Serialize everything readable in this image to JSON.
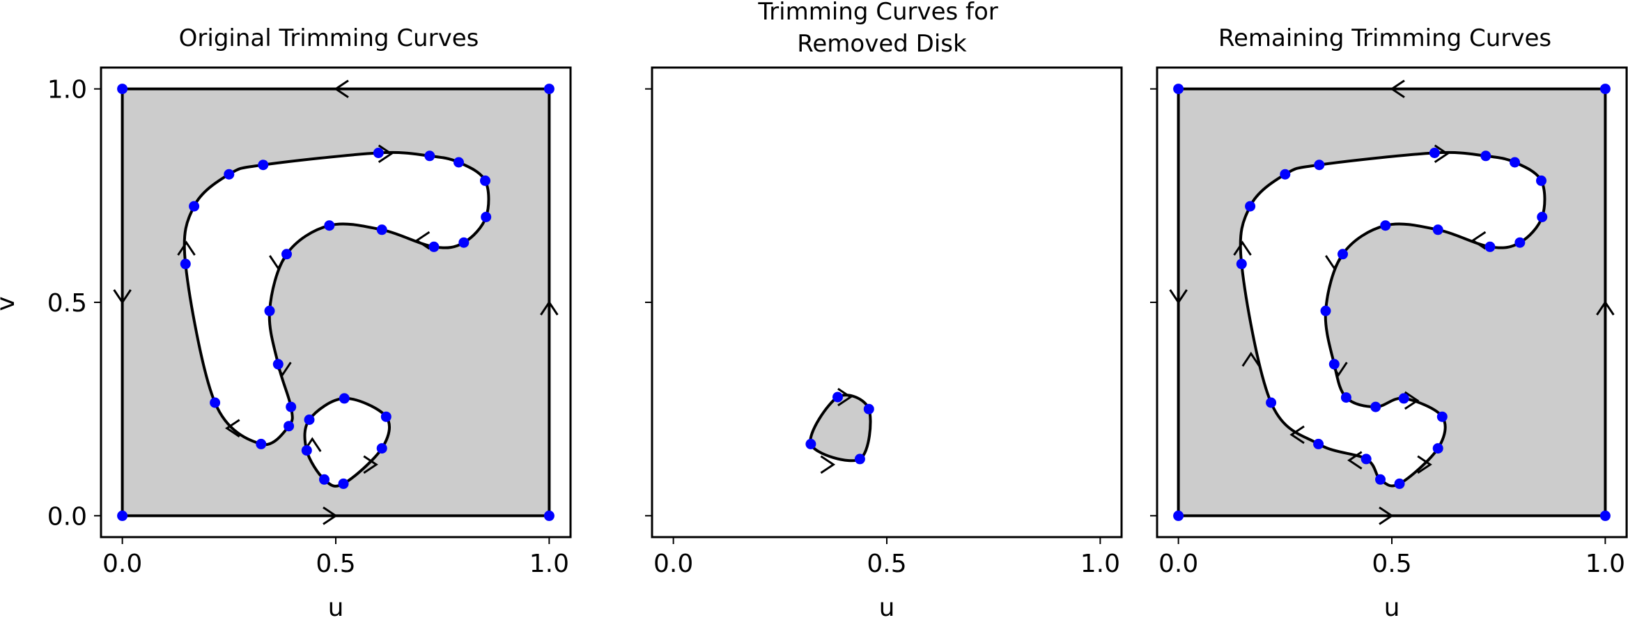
{
  "figure": {
    "background": "#ffffff",
    "fill_color": "#cccccc",
    "curve_color": "#000000",
    "point_color": "#0000ff"
  },
  "chart_data": [
    {
      "type": "line",
      "title": "Original Trimming Curves",
      "xlabel": "u",
      "ylabel": "v",
      "xlim": [
        -0.05,
        1.05
      ],
      "ylim": [
        -0.05,
        1.05
      ],
      "xticks": [
        {
          "value": 0.0,
          "label": "0.0"
        },
        {
          "value": 0.5,
          "label": "0.5"
        },
        {
          "value": 1.0,
          "label": "1.0"
        }
      ],
      "yticks": [
        {
          "value": 0.0,
          "label": "0.0"
        },
        {
          "value": 0.5,
          "label": "0.5"
        },
        {
          "value": 1.0,
          "label": "1.0"
        }
      ],
      "show_ytick_labels": true,
      "fill_region": true,
      "outer_boundary": [
        [
          0,
          0
        ],
        [
          1,
          0
        ],
        [
          1,
          1
        ],
        [
          0,
          1
        ],
        [
          0,
          0
        ]
      ],
      "outer_points": [
        [
          0,
          0
        ],
        [
          1,
          0
        ],
        [
          1,
          1
        ],
        [
          0,
          1
        ]
      ],
      "arrows": [
        {
          "at": [
            0.5,
            0.0
          ],
          "dir": "right"
        },
        {
          "at": [
            1.0,
            0.5
          ],
          "dir": "up"
        },
        {
          "at": [
            0.5,
            1.0
          ],
          "dir": "left"
        },
        {
          "at": [
            0.0,
            0.5
          ],
          "dir": "down"
        },
        {
          "at": [
            0.63,
            0.848
          ],
          "dir": "right"
        },
        {
          "at": [
            0.15,
            0.64
          ],
          "dir": "up"
        },
        {
          "at": [
            0.245,
            0.205
          ],
          "dir": "left"
        },
        {
          "at": [
            0.375,
            0.33
          ],
          "dir": "down"
        },
        {
          "at": [
            0.365,
            0.58
          ],
          "dir": "down"
        },
        {
          "at": [
            0.69,
            0.645
          ],
          "dir": "left"
        },
        {
          "at": [
            0.445,
            0.18
          ],
          "dir": "up"
        },
        {
          "at": [
            0.595,
            0.12
          ],
          "dir": "right"
        }
      ],
      "holes": [
        {
          "points": [
            [
              0.6,
              0.85
            ],
            [
              0.72,
              0.843
            ],
            [
              0.788,
              0.828
            ],
            [
              0.85,
              0.785
            ],
            [
              0.852,
              0.7
            ],
            [
              0.8,
              0.64
            ],
            [
              0.73,
              0.63
            ],
            [
              0.608,
              0.67
            ],
            [
              0.485,
              0.68
            ],
            [
              0.385,
              0.613
            ],
            [
              0.345,
              0.48
            ],
            [
              0.365,
              0.355
            ],
            [
              0.395,
              0.255
            ],
            [
              0.39,
              0.21
            ],
            [
              0.325,
              0.168
            ],
            [
              0.217,
              0.265
            ],
            [
              0.148,
              0.59
            ],
            [
              0.168,
              0.725
            ],
            [
              0.25,
              0.8
            ],
            [
              0.33,
              0.822
            ]
          ],
          "closed": true
        },
        {
          "points": [
            [
              0.52,
              0.275
            ],
            [
              0.618,
              0.232
            ],
            [
              0.608,
              0.158
            ],
            [
              0.518,
              0.075
            ],
            [
              0.473,
              0.085
            ],
            [
              0.432,
              0.153
            ],
            [
              0.438,
              0.225
            ]
          ],
          "closed": true
        }
      ]
    },
    {
      "type": "line",
      "title": "Trimming Curves for\nRemoved Disk",
      "xlabel": "u",
      "ylabel": "",
      "xlim": [
        -0.05,
        1.05
      ],
      "ylim": [
        -0.05,
        1.05
      ],
      "xticks": [
        {
          "value": 0.0,
          "label": "0.0"
        },
        {
          "value": 0.5,
          "label": "0.5"
        },
        {
          "value": 1.0,
          "label": "1.0"
        }
      ],
      "yticks": [
        {
          "value": 0.0,
          "label": ""
        },
        {
          "value": 0.5,
          "label": ""
        },
        {
          "value": 1.0,
          "label": ""
        }
      ],
      "show_ytick_labels": false,
      "fill_region": false,
      "arrows": [
        {
          "at": [
            0.415,
            0.278
          ],
          "dir": "right"
        },
        {
          "at": [
            0.375,
            0.12
          ],
          "dir": "right"
        }
      ],
      "shapes": [
        {
          "points": [
            [
              0.385,
              0.278
            ],
            [
              0.458,
              0.25
            ],
            [
              0.437,
              0.133
            ],
            [
              0.322,
              0.168
            ]
          ],
          "closed": true,
          "filled": true
        }
      ]
    },
    {
      "type": "line",
      "title": "Remaining Trimming Curves",
      "xlabel": "u",
      "ylabel": "",
      "xlim": [
        -0.05,
        1.05
      ],
      "ylim": [
        -0.05,
        1.05
      ],
      "xticks": [
        {
          "value": 0.0,
          "label": "0.0"
        },
        {
          "value": 0.5,
          "label": "0.5"
        },
        {
          "value": 1.0,
          "label": "1.0"
        }
      ],
      "yticks": [
        {
          "value": 0.0,
          "label": ""
        },
        {
          "value": 0.5,
          "label": ""
        },
        {
          "value": 1.0,
          "label": ""
        }
      ],
      "show_ytick_labels": false,
      "fill_region": true,
      "outer_boundary": [
        [
          0,
          0
        ],
        [
          1,
          0
        ],
        [
          1,
          1
        ],
        [
          0,
          1
        ],
        [
          0,
          0
        ]
      ],
      "outer_points": [
        [
          0,
          0
        ],
        [
          1,
          0
        ],
        [
          1,
          1
        ],
        [
          0,
          1
        ]
      ],
      "arrows": [
        {
          "at": [
            0.5,
            0.0
          ],
          "dir": "right"
        },
        {
          "at": [
            1.0,
            0.5
          ],
          "dir": "up"
        },
        {
          "at": [
            0.5,
            1.0
          ],
          "dir": "left"
        },
        {
          "at": [
            0.0,
            0.5
          ],
          "dir": "down"
        },
        {
          "at": [
            0.63,
            0.848
          ],
          "dir": "right"
        },
        {
          "at": [
            0.15,
            0.64
          ],
          "dir": "up"
        },
        {
          "at": [
            0.17,
            0.38
          ],
          "dir": "up"
        },
        {
          "at": [
            0.265,
            0.19
          ],
          "dir": "left"
        },
        {
          "at": [
            0.4,
            0.13
          ],
          "dir": "left"
        },
        {
          "at": [
            0.56,
            0.27
          ],
          "dir": "right"
        },
        {
          "at": [
            0.59,
            0.12
          ],
          "dir": "right"
        },
        {
          "at": [
            0.365,
            0.58
          ],
          "dir": "down"
        },
        {
          "at": [
            0.375,
            0.33
          ],
          "dir": "down"
        },
        {
          "at": [
            0.69,
            0.645
          ],
          "dir": "left"
        }
      ],
      "holes": [
        {
          "points": [
            [
              0.6,
              0.85
            ],
            [
              0.72,
              0.843
            ],
            [
              0.788,
              0.828
            ],
            [
              0.85,
              0.785
            ],
            [
              0.852,
              0.7
            ],
            [
              0.8,
              0.64
            ],
            [
              0.73,
              0.63
            ],
            [
              0.608,
              0.67
            ],
            [
              0.485,
              0.68
            ],
            [
              0.385,
              0.613
            ],
            [
              0.345,
              0.48
            ],
            [
              0.365,
              0.355
            ],
            [
              0.393,
              0.277
            ],
            [
              0.462,
              0.255
            ],
            [
              0.528,
              0.275
            ],
            [
              0.618,
              0.232
            ],
            [
              0.608,
              0.158
            ],
            [
              0.518,
              0.075
            ],
            [
              0.473,
              0.085
            ],
            [
              0.44,
              0.133
            ],
            [
              0.328,
              0.168
            ],
            [
              0.217,
              0.265
            ],
            [
              0.148,
              0.59
            ],
            [
              0.168,
              0.725
            ],
            [
              0.25,
              0.8
            ],
            [
              0.33,
              0.822
            ]
          ],
          "closed": true
        }
      ]
    }
  ]
}
